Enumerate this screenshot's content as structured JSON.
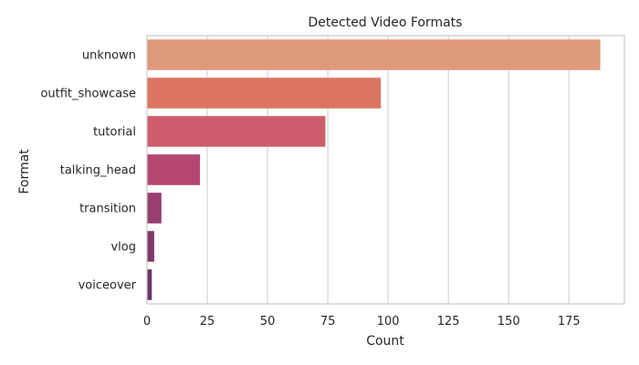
{
  "chart_data": {
    "type": "bar",
    "orientation": "horizontal",
    "title": "Detected Video Formats",
    "xlabel": "Count",
    "ylabel": "Format",
    "categories": [
      "unknown",
      "outfit_showcase",
      "tutorial",
      "talking_head",
      "transition",
      "vlog",
      "voiceover"
    ],
    "values": [
      188,
      97,
      74,
      22,
      6,
      3,
      2
    ],
    "colors": [
      "#df9a7a",
      "#dc7462",
      "#cf5c6b",
      "#b44672",
      "#983f6f",
      "#7f3a6a",
      "#6b3465"
    ],
    "xlim": [
      0,
      198
    ],
    "xticks": [
      0,
      25,
      50,
      75,
      100,
      125,
      150,
      175
    ],
    "grid": "vertical",
    "legend": "none"
  }
}
